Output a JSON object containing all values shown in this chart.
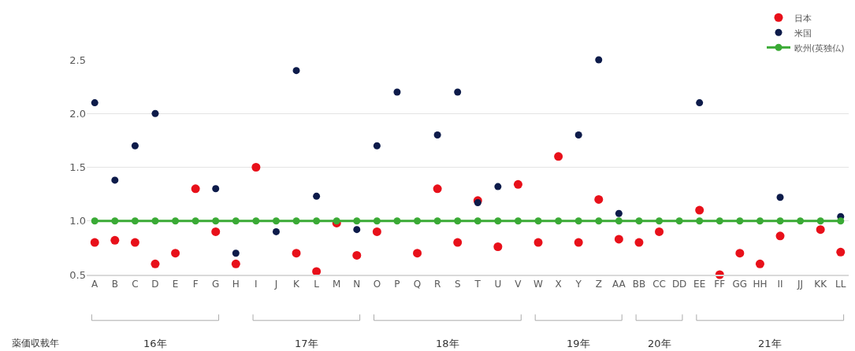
{
  "chart_data": {
    "type": "scatter",
    "categories": [
      "A",
      "B",
      "C",
      "D",
      "E",
      "F",
      "G",
      "H",
      "I",
      "J",
      "K",
      "L",
      "M",
      "N",
      "O",
      "P",
      "Q",
      "R",
      "S",
      "T",
      "U",
      "V",
      "W",
      "X",
      "Y",
      "Z",
      "AA",
      "BB",
      "CC",
      "DD",
      "EE",
      "FF",
      "GG",
      "HH",
      "II",
      "JJ",
      "KK",
      "LL"
    ],
    "series": [
      {
        "name": "日本",
        "color": "#e8101a",
        "values": [
          0.8,
          0.82,
          0.8,
          0.6,
          0.7,
          1.3,
          0.9,
          0.6,
          1.5,
          null,
          0.7,
          0.53,
          0.98,
          0.68,
          0.9,
          null,
          0.7,
          1.3,
          0.8,
          1.19,
          0.76,
          1.34,
          0.8,
          1.6,
          0.8,
          1.2,
          0.83,
          0.8,
          0.9,
          null,
          1.1,
          0.5,
          0.7,
          0.6,
          0.86,
          null,
          0.92,
          0.71
        ]
      },
      {
        "name": "米国",
        "color": "#0d1b4a",
        "values": [
          2.1,
          1.38,
          1.7,
          2.0,
          null,
          null,
          1.3,
          0.7,
          null,
          0.9,
          2.4,
          1.23,
          null,
          0.92,
          1.7,
          2.2,
          null,
          1.8,
          2.2,
          1.17,
          1.32,
          null,
          null,
          null,
          1.8,
          2.5,
          1.07,
          null,
          null,
          null,
          2.1,
          null,
          null,
          null,
          1.22,
          null,
          null,
          1.04
        ]
      },
      {
        "name": "欧州(英独仏)",
        "color": "#3aaa35",
        "type": "line",
        "values": [
          1,
          1,
          1,
          1,
          1,
          1,
          1,
          1,
          1,
          1,
          1,
          1,
          1,
          1,
          1,
          1,
          1,
          1,
          1,
          1,
          1,
          1,
          1,
          1,
          1,
          1,
          1,
          1,
          1,
          1,
          1,
          1,
          1,
          1,
          1,
          1,
          1,
          1
        ]
      }
    ],
    "ylim": [
      0.5,
      2.5
    ],
    "yticks": [
      {
        "value": 0.5,
        "label": "0.5"
      },
      {
        "value": 1,
        "label": "1.0"
      },
      {
        "value": 1.5,
        "label": "1.5"
      },
      {
        "value": 2,
        "label": "2.0"
      },
      {
        "value": 2.5,
        "label": "2.5"
      }
    ],
    "grid": "y",
    "legend": "top right",
    "marker": "circle",
    "annotations": [
      "薬価収載年",
      "16年",
      "17年",
      "18年",
      "19年",
      "20年",
      "21年"
    ]
  }
}
